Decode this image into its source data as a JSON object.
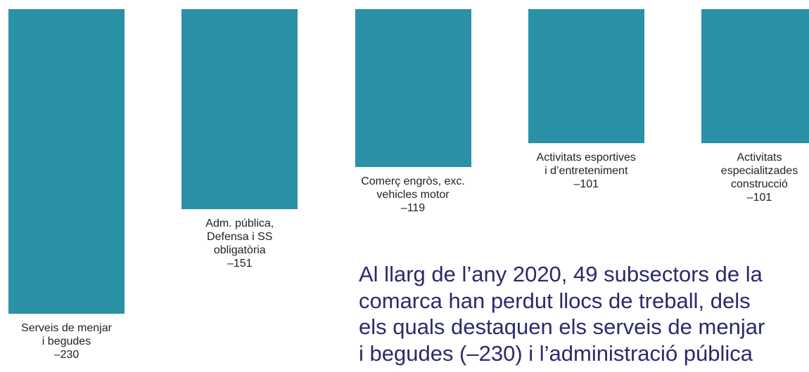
{
  "chart_data": {
    "type": "bar",
    "categories": [
      "Serveis de menjar\ni begudes",
      "Adm. pública,\nDefensa i SS\nobligatòria",
      "Comerç engròs, exc.\nvehicles motor",
      "Activitats esportives\ni d’entreteniment",
      "Activitats\nespecialitzades\nconstrucció"
    ],
    "values": [
      -230,
      -151,
      -119,
      -101,
      -101
    ],
    "value_labels": [
      "–230",
      "–151",
      "–119",
      "–101",
      "–101"
    ],
    "color": "#2a91a6"
  },
  "text": [
    "Al llarg de l’any 2020, 49 subsectors de la",
    "comarca han perdut llocs de treball, dels",
    "els quals destaquen els serveis de menjar",
    "i begudes (–230) i l’administració pública"
  ]
}
